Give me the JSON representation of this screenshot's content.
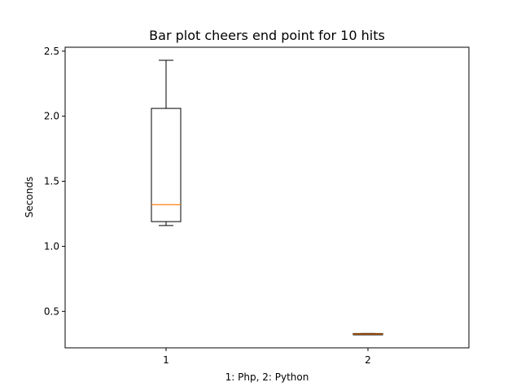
{
  "chart_data": {
    "type": "box",
    "title": "Bar plot cheers end point for 10 hits",
    "xlabel": "1: Php, 2: Python",
    "ylabel": "Seconds",
    "categories": [
      "1",
      "2"
    ],
    "yticks": [
      "0.5",
      "1.0",
      "1.5",
      "2.0",
      "2.5"
    ],
    "ylim": [
      0.22,
      2.53
    ],
    "xlim": [
      0.5,
      2.5
    ],
    "boxes": [
      {
        "category": "1",
        "whisker_low": 1.16,
        "q1": 1.19,
        "median": 1.32,
        "q3": 2.06,
        "whisker_high": 2.43
      },
      {
        "category": "2",
        "whisker_low": 0.32,
        "q1": 0.32,
        "median": 0.326,
        "q3": 0.33,
        "whisker_high": 0.33
      }
    ],
    "colors": {
      "box": "#000000",
      "median": "#ff7f0e"
    },
    "grid": false
  }
}
